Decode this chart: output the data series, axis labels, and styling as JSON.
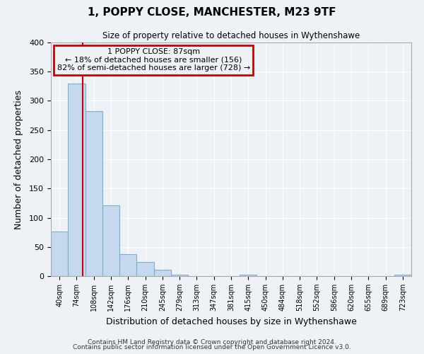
{
  "title": "1, POPPY CLOSE, MANCHESTER, M23 9TF",
  "subtitle": "Size of property relative to detached houses in Wythenshawe",
  "xlabel": "Distribution of detached houses by size in Wythenshawe",
  "ylabel": "Number of detached properties",
  "bin_labels": [
    "40sqm",
    "74sqm",
    "108sqm",
    "142sqm",
    "176sqm",
    "210sqm",
    "245sqm",
    "279sqm",
    "313sqm",
    "347sqm",
    "381sqm",
    "415sqm",
    "450sqm",
    "484sqm",
    "518sqm",
    "552sqm",
    "586sqm",
    "620sqm",
    "655sqm",
    "689sqm",
    "723sqm"
  ],
  "bar_values": [
    76,
    330,
    283,
    121,
    37,
    24,
    11,
    3,
    0,
    0,
    0,
    2,
    0,
    0,
    0,
    0,
    0,
    0,
    0,
    0,
    2
  ],
  "bar_color": "#c5d8ed",
  "bar_edgecolor": "#7bafd4",
  "ylim": [
    0,
    400
  ],
  "yticks": [
    0,
    50,
    100,
    150,
    200,
    250,
    300,
    350,
    400
  ],
  "property_line_x": 1.35,
  "annotation_title": "1 POPPY CLOSE: 87sqm",
  "annotation_line1": "← 18% of detached houses are smaller (156)",
  "annotation_line2": "82% of semi-detached houses are larger (728) →",
  "annotation_box_color": "#cc0000",
  "footer_line1": "Contains HM Land Registry data © Crown copyright and database right 2024.",
  "footer_line2": "Contains public sector information licensed under the Open Government Licence v3.0.",
  "background_color": "#eef2f7",
  "grid_color": "#ffffff",
  "n_bins": 21
}
